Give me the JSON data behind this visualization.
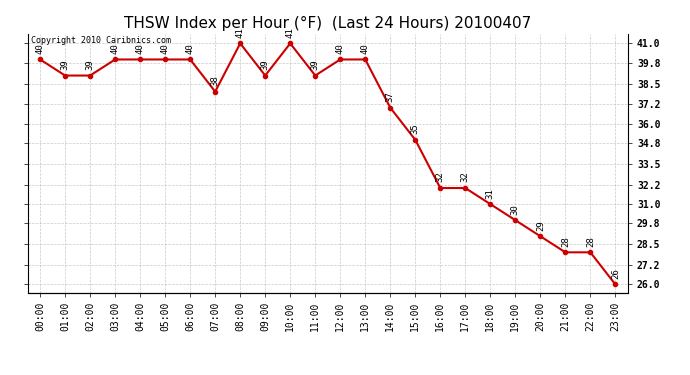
{
  "title": "THSW Index per Hour (°F)  (Last 24 Hours) 20100407",
  "copyright_text": "Copyright 2010 Caribnics.com",
  "hours": [
    "00:00",
    "01:00",
    "02:00",
    "03:00",
    "04:00",
    "05:00",
    "06:00",
    "07:00",
    "08:00",
    "09:00",
    "10:00",
    "11:00",
    "12:00",
    "13:00",
    "14:00",
    "15:00",
    "16:00",
    "17:00",
    "18:00",
    "19:00",
    "20:00",
    "21:00",
    "22:00",
    "23:00"
  ],
  "values": [
    40,
    39,
    39,
    40,
    40,
    40,
    40,
    38,
    41,
    39,
    41,
    39,
    40,
    40,
    37,
    35,
    32,
    32,
    31,
    30,
    29,
    28,
    28,
    26
  ],
  "line_color": "#cc0000",
  "marker_color": "#cc0000",
  "bg_color": "#ffffff",
  "grid_color": "#bbbbbb",
  "yticks": [
    26.0,
    27.2,
    28.5,
    29.8,
    31.0,
    32.2,
    33.5,
    34.8,
    36.0,
    37.2,
    38.5,
    39.8,
    41.0
  ],
  "ymin": 25.5,
  "ymax": 41.6,
  "title_fontsize": 11,
  "label_fontsize": 6.5,
  "tick_fontsize": 7,
  "copyright_fontsize": 6
}
